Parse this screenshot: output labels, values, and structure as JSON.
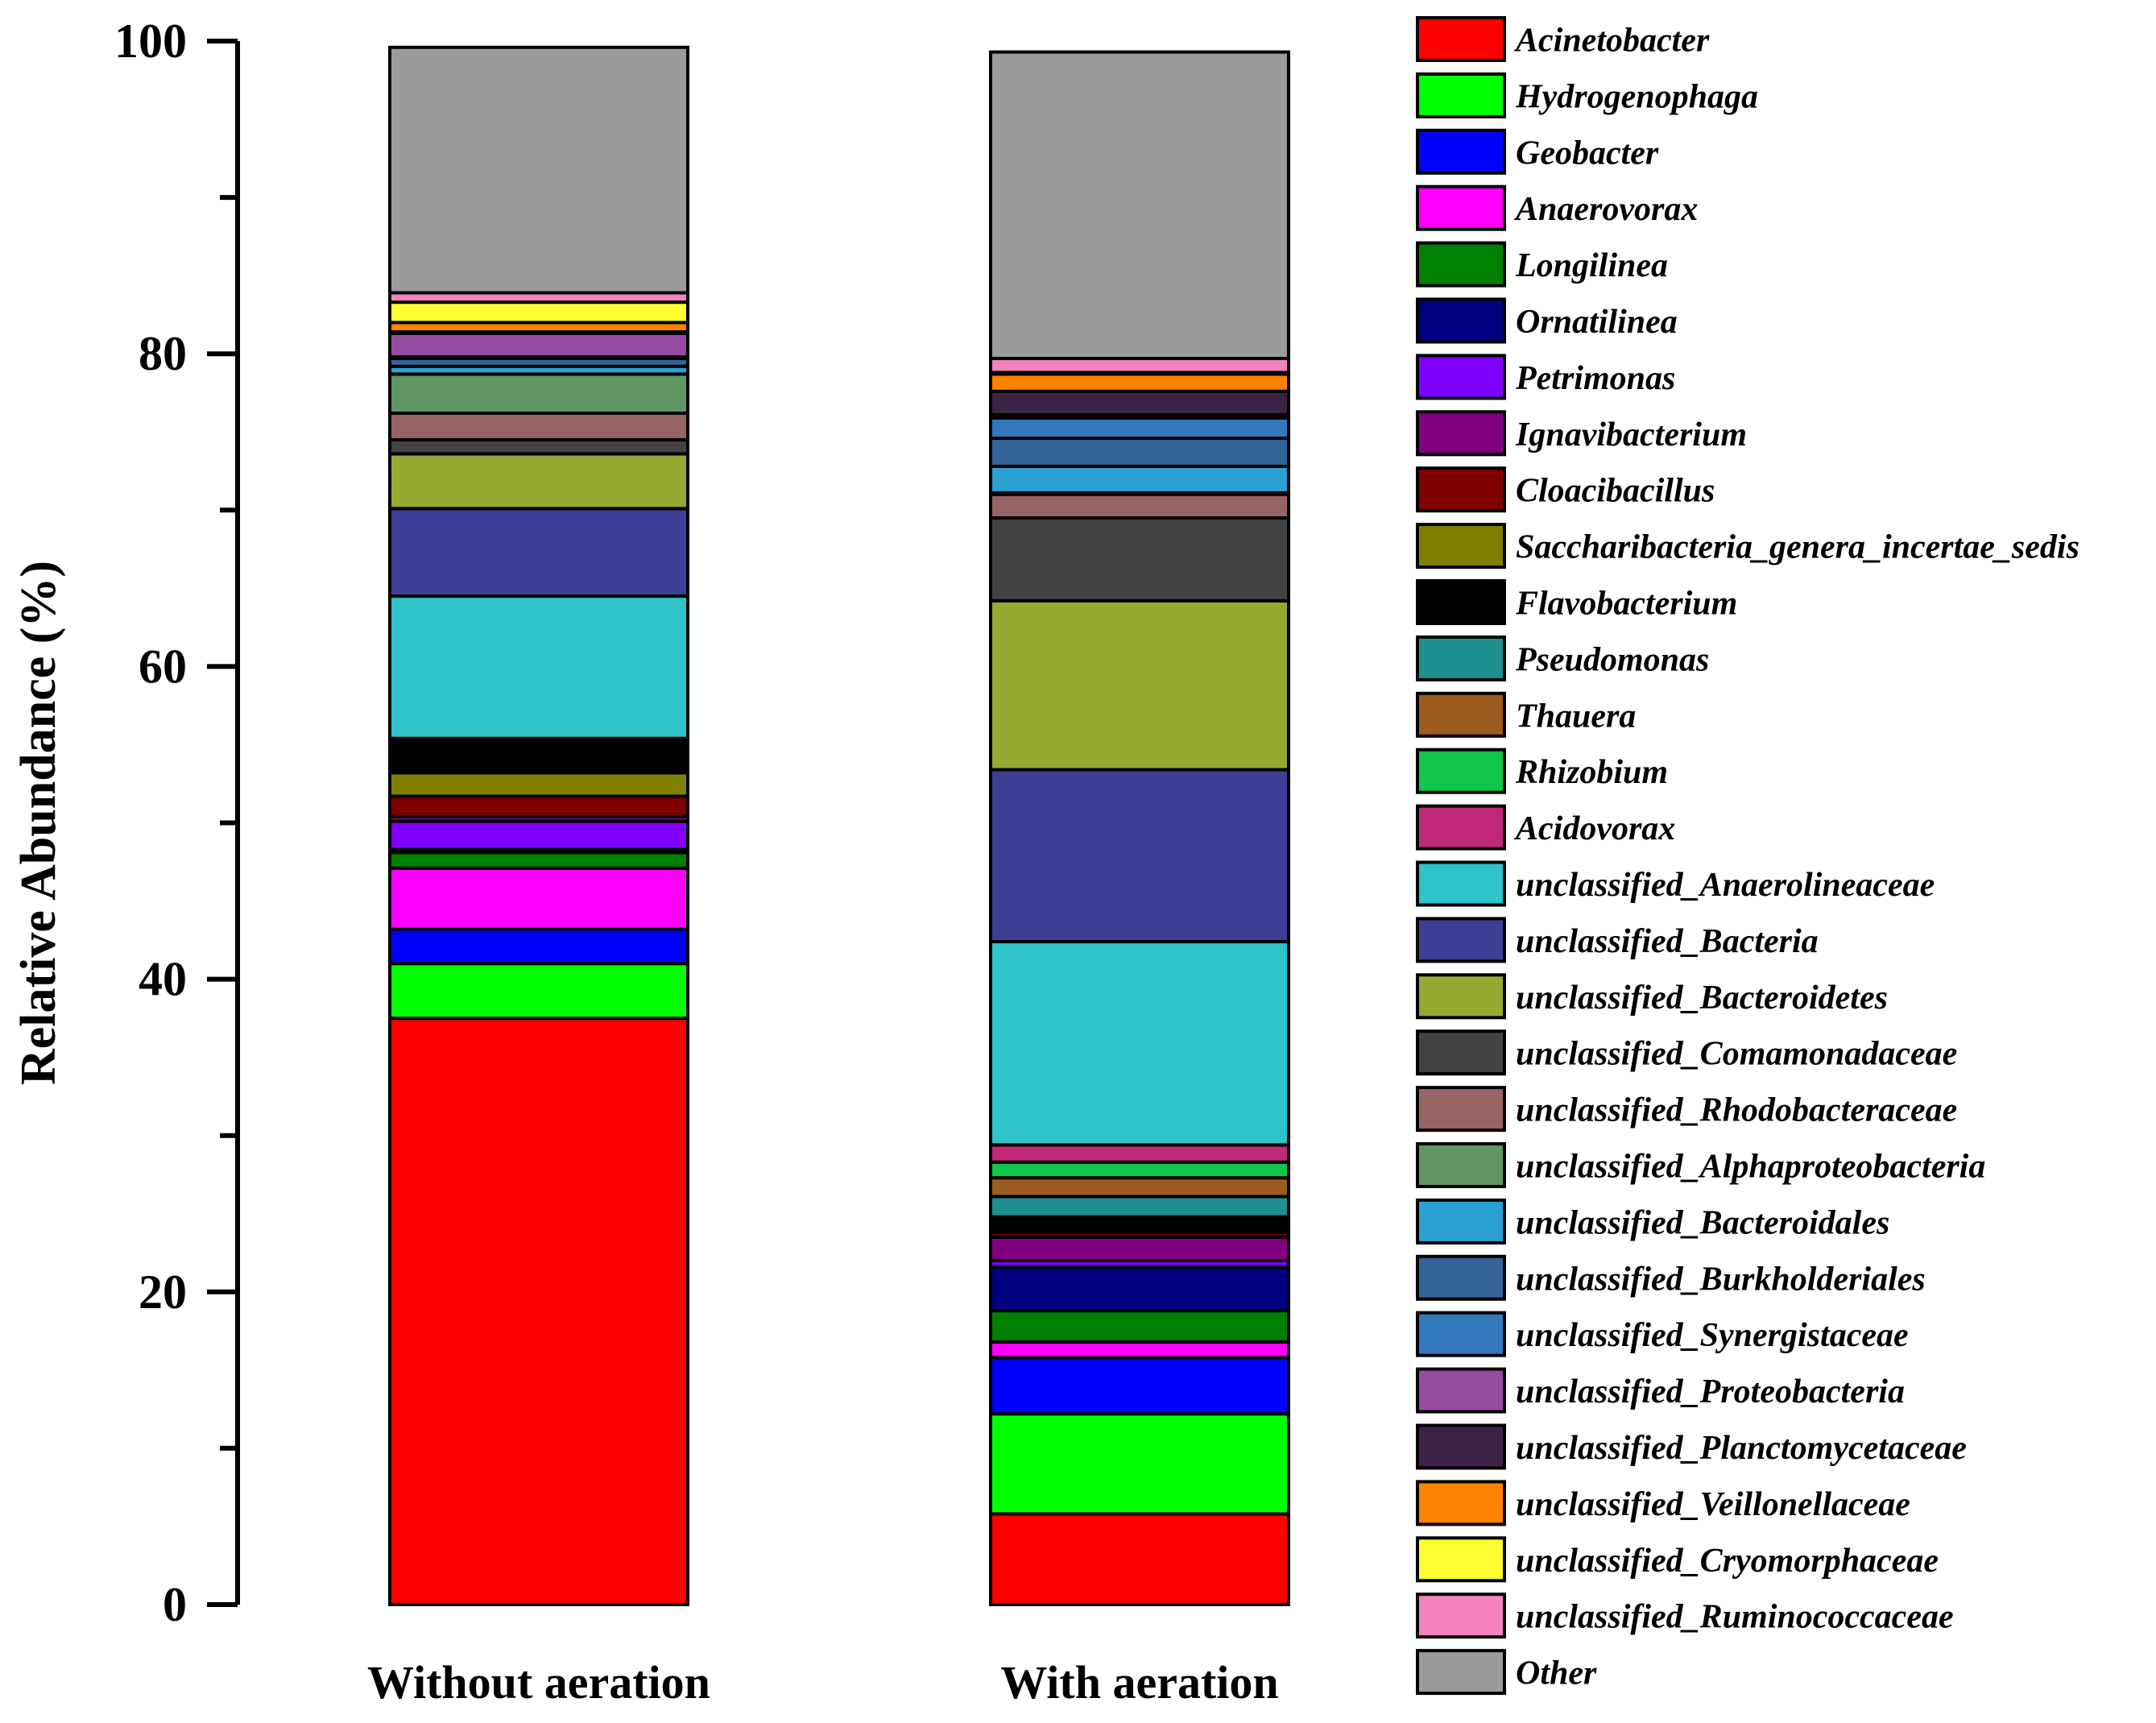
{
  "chart_data": {
    "type": "bar",
    "stacked": true,
    "title": "",
    "xlabel": "",
    "ylabel": "Relative Abundance (%)",
    "ylim": [
      0,
      100
    ],
    "yticks": [
      "0",
      "20",
      "40",
      "60",
      "80",
      "100"
    ],
    "categories": [
      "Without aeration",
      "With aeration"
    ],
    "legend_position": "right",
    "series": [
      {
        "name": "Acinetobacter",
        "color": "#FF0000",
        "values": [
          37.5,
          5.8
        ]
      },
      {
        "name": "Hydrogenophaga",
        "color": "#00FF00",
        "values": [
          3.5,
          6.4
        ]
      },
      {
        "name": "Geobacter",
        "color": "#0000FF",
        "values": [
          2.2,
          3.6
        ]
      },
      {
        "name": "Anaerovorax",
        "color": "#FF00FF",
        "values": [
          3.9,
          1.0
        ]
      },
      {
        "name": "Longilinea",
        "color": "#008000",
        "values": [
          1.0,
          2.0
        ]
      },
      {
        "name": "Ornatilinea",
        "color": "#000080",
        "values": [
          0.2,
          2.8
        ]
      },
      {
        "name": "Petrimonas",
        "color": "#8000FF",
        "values": [
          1.8,
          0.4
        ]
      },
      {
        "name": "Ignavibacterium",
        "color": "#800080",
        "values": [
          0.3,
          1.5
        ]
      },
      {
        "name": "Cloacibacillus",
        "color": "#800000",
        "values": [
          1.3,
          0.3
        ]
      },
      {
        "name": "Saccharibacteria_genera_incertae_sedis",
        "color": "#808000",
        "values": [
          1.5,
          0.2
        ]
      },
      {
        "name": "Flavobacterium",
        "color": "#000000",
        "values": [
          1.8,
          0.8
        ]
      },
      {
        "name": "Pseudomonas",
        "color": "#1E9090",
        "values": [
          0.1,
          1.3
        ]
      },
      {
        "name": "Thauera",
        "color": "#9B5C1E",
        "values": [
          0.1,
          1.2
        ]
      },
      {
        "name": "Rhizobium",
        "color": "#12C64A",
        "values": [
          0.1,
          1.0
        ]
      },
      {
        "name": "Acidovorax",
        "color": "#C0287A",
        "values": [
          0.1,
          1.1
        ]
      },
      {
        "name": "unclassified_Anaerolineaceae",
        "color": "#2EC4C9",
        "values": [
          9.1,
          13.0
        ]
      },
      {
        "name": "unclassified_Bacteria",
        "color": "#3E3E96",
        "values": [
          5.6,
          11.0
        ]
      },
      {
        "name": "unclassified_Bacteroidetes",
        "color": "#96AA32",
        "values": [
          3.5,
          10.8
        ]
      },
      {
        "name": "unclassified_Comamonadaceae",
        "color": "#434343",
        "values": [
          0.9,
          5.3
        ]
      },
      {
        "name": "unclassified_Rhodobacteraceae",
        "color": "#966464",
        "values": [
          1.7,
          1.5
        ]
      },
      {
        "name": "unclassified_Alphaproteobacteria",
        "color": "#5F9664",
        "values": [
          2.5,
          0.1
        ]
      },
      {
        "name": "unclassified_Bacteroidales",
        "color": "#2BA0D2",
        "values": [
          0.5,
          1.7
        ]
      },
      {
        "name": "unclassified_Burkholderiales",
        "color": "#32649B",
        "values": [
          0.5,
          1.8
        ]
      },
      {
        "name": "unclassified_Synergistaceae",
        "color": "#3278BE",
        "values": [
          0.1,
          1.3
        ]
      },
      {
        "name": "unclassified_Proteobacteria",
        "color": "#964BA0",
        "values": [
          1.5,
          0.2
        ]
      },
      {
        "name": "unclassified_Planctomycetaceae",
        "color": "#3C2346",
        "values": [
          0.1,
          1.5
        ]
      },
      {
        "name": "unclassified_Veillonellaceae",
        "color": "#FF8200",
        "values": [
          0.6,
          1.1
        ]
      },
      {
        "name": "unclassified_Cryomorphaceae",
        "color": "#FFFF32",
        "values": [
          1.3,
          0.1
        ]
      },
      {
        "name": "unclassified_Ruminococcaceae",
        "color": "#F582BE",
        "values": [
          0.6,
          0.9
        ]
      },
      {
        "name": "Other",
        "color": "#9B9B9B",
        "values": [
          15.7,
          19.6
        ]
      }
    ]
  }
}
